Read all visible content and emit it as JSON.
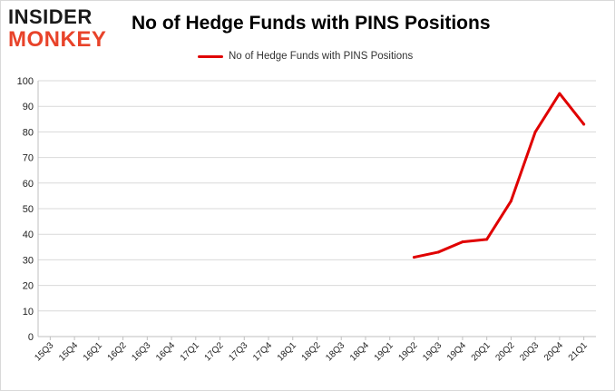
{
  "logo": {
    "line1": "INSIDER",
    "line2": "MONKEY"
  },
  "chart_data": {
    "type": "line",
    "title": "No of Hedge Funds with PINS Positions",
    "xlabel": "",
    "ylabel": "",
    "categories": [
      "15Q3",
      "15Q4",
      "16Q1",
      "16Q2",
      "16Q3",
      "16Q4",
      "17Q1",
      "17Q2",
      "17Q3",
      "17Q4",
      "18Q1",
      "18Q2",
      "18Q3",
      "18Q4",
      "19Q1",
      "19Q2",
      "19Q3",
      "19Q4",
      "20Q1",
      "20Q2",
      "20Q3",
      "20Q4",
      "21Q1"
    ],
    "series": [
      {
        "name": "No of Hedge Funds with PINS Positions",
        "color": "#e00000",
        "values": [
          null,
          null,
          null,
          null,
          null,
          null,
          null,
          null,
          null,
          null,
          null,
          null,
          null,
          null,
          null,
          31,
          33,
          37,
          38,
          53,
          80,
          95,
          83
        ]
      }
    ],
    "ylim": [
      0,
      100
    ],
    "yticks": [
      0,
      10,
      20,
      30,
      40,
      50,
      60,
      70,
      80,
      90,
      100
    ],
    "grid": true,
    "legend_position": "top-center"
  }
}
